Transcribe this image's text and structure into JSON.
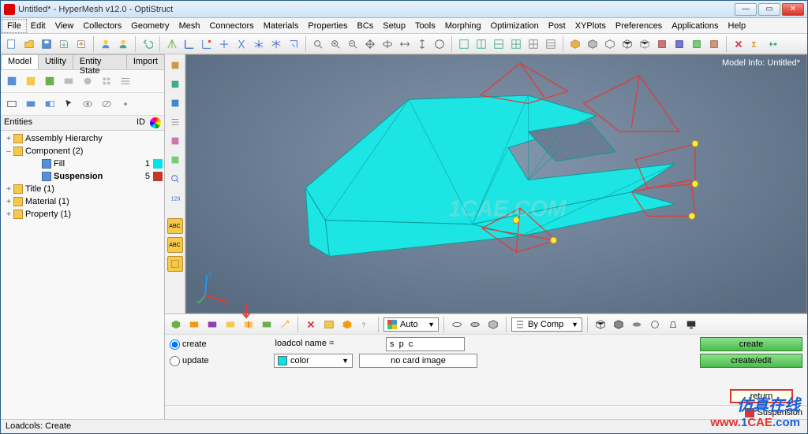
{
  "window": {
    "title": "Untitled* - HyperMesh v12.0 - OptiStruct",
    "min_tooltip": "Minimize",
    "max_tooltip": "Maximize",
    "close_tooltip": "Close"
  },
  "menu": [
    "File",
    "Edit",
    "View",
    "Collectors",
    "Geometry",
    "Mesh",
    "Connectors",
    "Materials",
    "Properties",
    "BCs",
    "Setup",
    "Tools",
    "Morphing",
    "Optimization",
    "Post",
    "XYPlots",
    "Preferences",
    "Applications",
    "Help"
  ],
  "browser": {
    "tabs": [
      "Model",
      "Utility",
      "Entity State",
      "Import"
    ],
    "active_tab": 0,
    "header": {
      "entities": "Entities",
      "id": "ID"
    },
    "tree": [
      {
        "level": 0,
        "exp": "+",
        "icon": "assembly",
        "label": "Assembly Hierarchy",
        "id": "",
        "swatch": ""
      },
      {
        "level": 0,
        "exp": "–",
        "icon": "folder",
        "label": "Component (2)",
        "id": "",
        "swatch": ""
      },
      {
        "level": 2,
        "exp": "",
        "icon": "cube",
        "label": "Fill",
        "id": "1",
        "swatch": "#00e5e5",
        "bold": false
      },
      {
        "level": 2,
        "exp": "",
        "icon": "cube",
        "label": "Suspension",
        "id": "5",
        "swatch": "#c0392b",
        "bold": true
      },
      {
        "level": 0,
        "exp": "+",
        "icon": "folder",
        "label": "Title (1)",
        "id": "",
        "swatch": ""
      },
      {
        "level": 0,
        "exp": "+",
        "icon": "folder",
        "label": "Material (1)",
        "id": "",
        "swatch": ""
      },
      {
        "level": 0,
        "exp": "+",
        "icon": "folder",
        "label": "Property (1)",
        "id": "",
        "swatch": ""
      }
    ]
  },
  "viewport": {
    "model_info": "Model Info: Untitled*",
    "axis_labels": {
      "x": "X",
      "y": "Y",
      "z": "Z"
    },
    "watermark_center": "1CAE.COM",
    "model": {
      "mesh_color": "#1de5e3",
      "edge_color": "#0a9c9a",
      "wire_color": "#e53935",
      "node_color": "#ffeb3b",
      "background_inner": "#8497ac",
      "background_outer": "#596b80"
    }
  },
  "bottom_toolbar": {
    "combo1": "Auto",
    "combo2": "By Comp"
  },
  "form": {
    "mode_create": "create",
    "mode_update": "update",
    "loadcol_label": "loadcol name =",
    "loadcol_value": "s  p  c",
    "color_label": "color",
    "card_image": "no card image",
    "btn_create": "create",
    "btn_create_edit": "create/edit",
    "btn_return": "return"
  },
  "status_right": {
    "label": "Suspension",
    "swatch": "#c0392b"
  },
  "status_bar": "Loadcols: Create",
  "watermark": {
    "cn": "仿真在线",
    "url_parts": [
      "www.",
      "1",
      "CAE",
      ".com"
    ]
  },
  "colors": {
    "titlebar_grad_a": "#e8f1fb",
    "titlebar_grad_b": "#cfe3f7",
    "green_btn_a": "#8de08d",
    "green_btn_b": "#4dbb4d"
  }
}
